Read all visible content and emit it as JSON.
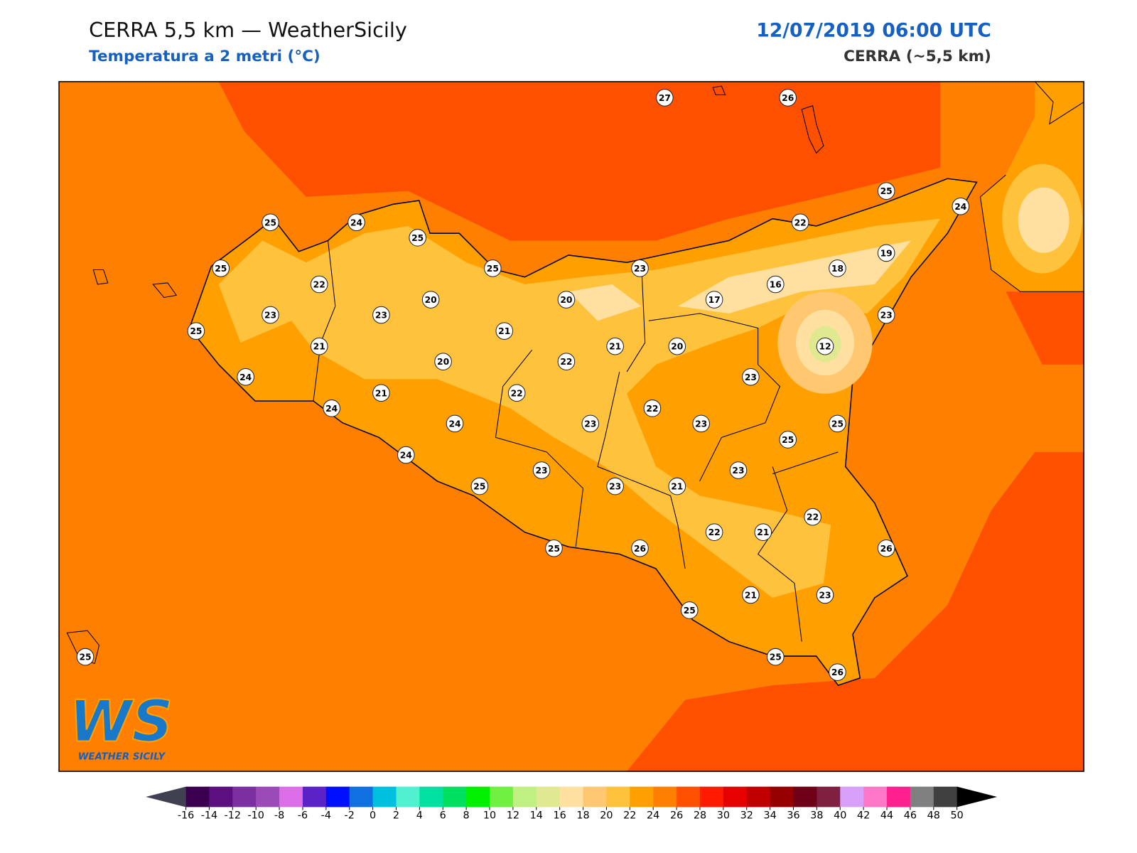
{
  "header": {
    "title": "CERRA 5,5 km — WeatherSicily",
    "subtitle": "Temperatura a 2 metri (°C)",
    "datetime": "12/07/2019 06:00 UTC",
    "source": "CERRA (~5,5 km)"
  },
  "stations": [
    27,
    26,
    25,
    24,
    25,
    24,
    25,
    22,
    25,
    22,
    25,
    23,
    19,
    18,
    16,
    23,
    20,
    20,
    17,
    23,
    25,
    21,
    23,
    21,
    21,
    20,
    12,
    20,
    22,
    24,
    21,
    22,
    23,
    24,
    22,
    24,
    23,
    23,
    25,
    25,
    24,
    23,
    23,
    25,
    23,
    21,
    22,
    22,
    21,
    25,
    26,
    26,
    25,
    21,
    23,
    25,
    25,
    26
  ],
  "colorbar": {
    "ticks": [
      -16,
      -14,
      -12,
      -10,
      -8,
      -6,
      -4,
      -2,
      0,
      2,
      4,
      6,
      8,
      10,
      12,
      14,
      16,
      18,
      20,
      22,
      24,
      26,
      28,
      30,
      32,
      34,
      36,
      38,
      40,
      42,
      44,
      46,
      48,
      50
    ],
    "colors": [
      "#3b0050",
      "#5c1080",
      "#7b2fa0",
      "#9b4bb8",
      "#dc6fe8",
      "#5b22c8",
      "#0010ff",
      "#1070e0",
      "#00c0e0",
      "#50f0d0",
      "#00e0a0",
      "#00e060",
      "#00f000",
      "#70f040",
      "#c0f080",
      "#e0e890",
      "#ffe0a0",
      "#ffc870",
      "#ffc23d",
      "#ffa000",
      "#ff8000",
      "#ff5000",
      "#ff1a00",
      "#e60000",
      "#c00000",
      "#960000",
      "#700018",
      "#802040",
      "#d8a0f8",
      "#ff78c8",
      "#ff2090",
      "#808080",
      "#404040"
    ],
    "under_color": "#404050",
    "over_color": "#000000"
  },
  "logo": {
    "mark": "WS",
    "name": "WEATHER SICILY"
  }
}
